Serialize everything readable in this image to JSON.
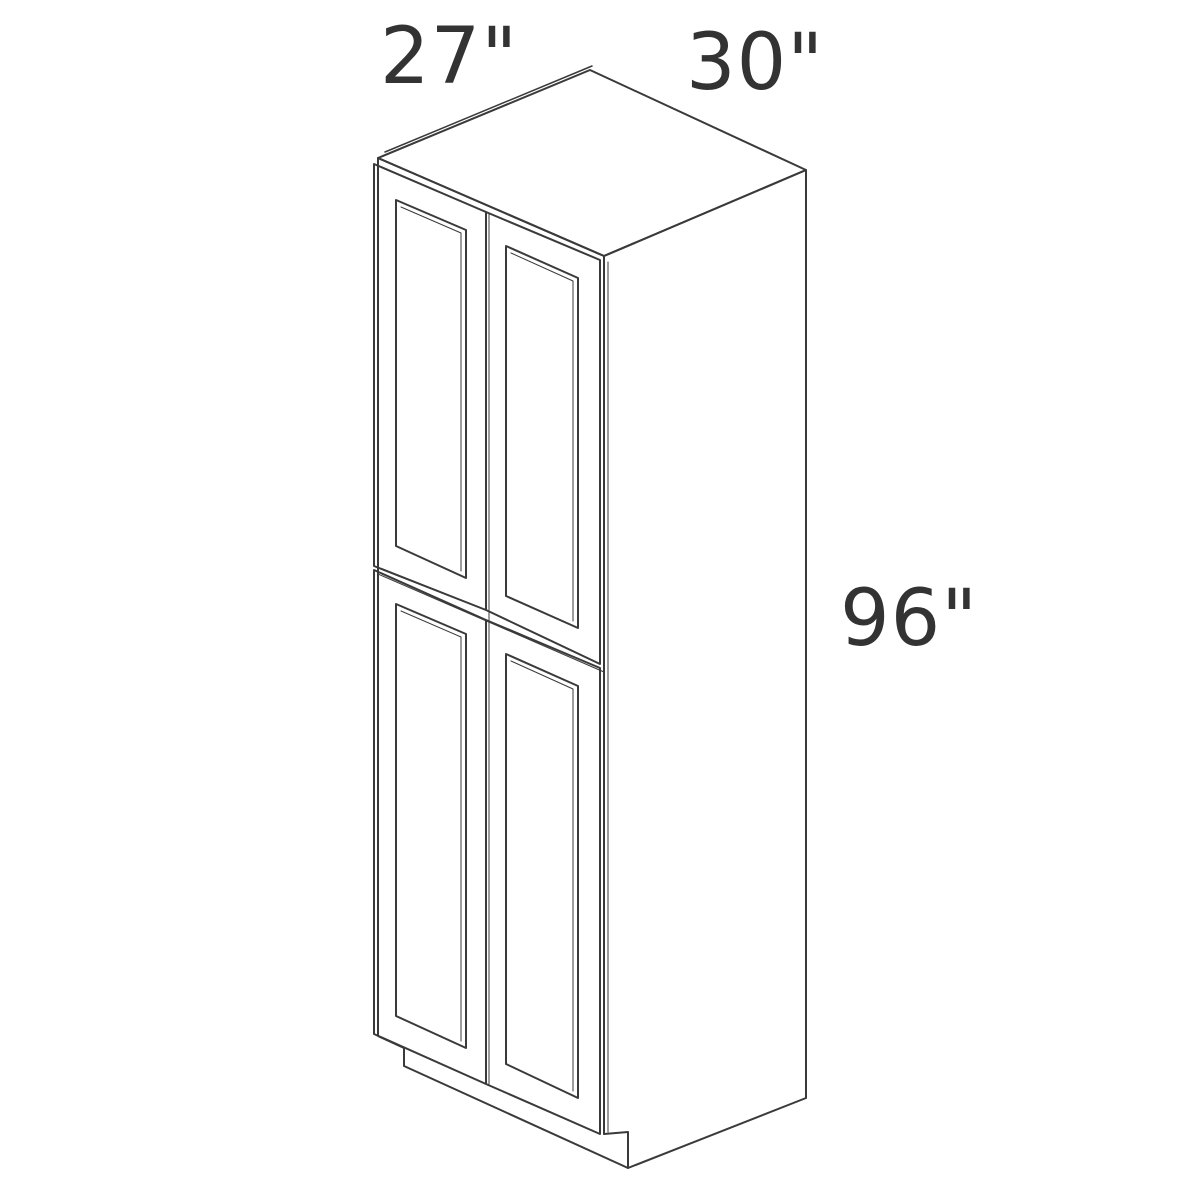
{
  "dimensions": {
    "width": "27\"",
    "depth": "30\"",
    "height": "96\""
  },
  "colors": {
    "line": "#3a3a3a",
    "text": "#333333",
    "background": "#ffffff"
  }
}
